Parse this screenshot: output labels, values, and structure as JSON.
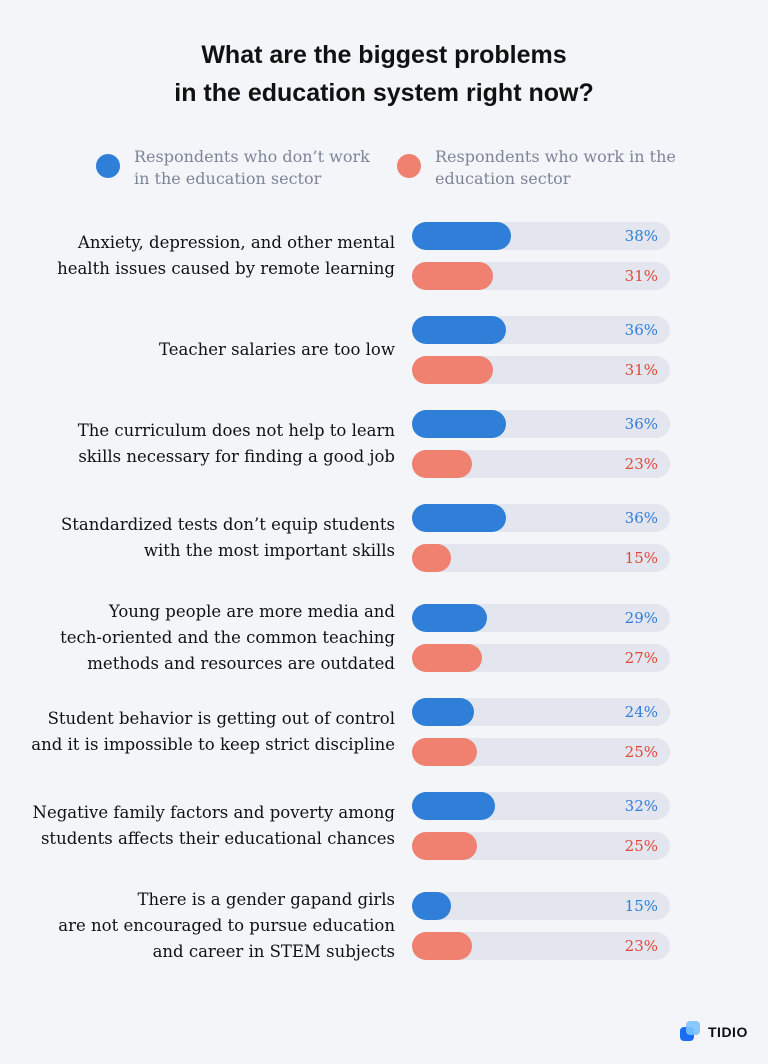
{
  "chart_data": {
    "type": "bar",
    "orientation": "horizontal",
    "title_lines": [
      "What are the biggest problems",
      "in the education system right now?"
    ],
    "legend": [
      {
        "lines": [
          "Respondents who don’t work",
          "in the education sector"
        ],
        "color": "#2f7ed8"
      },
      {
        "lines": [
          "Respondents who work in the",
          "education sector"
        ],
        "color": "#f08070"
      }
    ],
    "categories": [
      [
        "Anxiety, depression, and other mental",
        "health issues caused by remote learning"
      ],
      [
        "Teacher salaries are too low"
      ],
      [
        "The curriculum does not help to learn",
        "skills necessary for finding a good job"
      ],
      [
        "Standardized tests don’t equip students",
        "with the most important skills"
      ],
      [
        "Young people are more media and",
        "tech-oriented and the common teaching",
        "methods and resources are outdated"
      ],
      [
        "Student behavior is getting out of control",
        "and it is impossible to keep strict discipline"
      ],
      [
        "Negative family factors and poverty among",
        "students affects their educational chances"
      ],
      [
        "There is a gender gapand girls",
        "are not encouraged to pursue education",
        "and career in STEM subjects"
      ]
    ],
    "series": [
      {
        "values": [
          38,
          36,
          36,
          36,
          29,
          24,
          32,
          15
        ],
        "labels": [
          "38%",
          "36%",
          "36%",
          "36%",
          "29%",
          "24%",
          "32%",
          "15%"
        ],
        "color": "#2f7ed8",
        "label_color": "#2f7ed8"
      },
      {
        "values": [
          31,
          31,
          23,
          15,
          27,
          25,
          25,
          23
        ],
        "labels": [
          "31%",
          "31%",
          "23%",
          "15%",
          "27%",
          "25%",
          "25%",
          "23%"
        ],
        "color": "#f08070",
        "label_color": "#e0483a"
      }
    ],
    "xlim": [
      0,
      100
    ],
    "track_color": "#e3e6ee"
  },
  "brand": {
    "name": "TIDIO"
  }
}
